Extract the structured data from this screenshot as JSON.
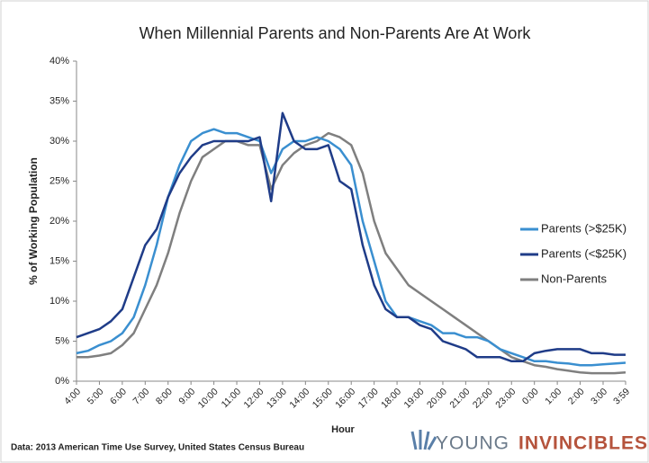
{
  "chart_data": {
    "type": "line",
    "title": "When Millennial Parents and Non-Parents Are At Work",
    "x_label": "Hour",
    "y_label": "% of Working Population",
    "source": "Data: 2013 American Time Use Survey, United States Census Bureau",
    "logo": [
      "YOUNG",
      "INVINCIBLES"
    ],
    "x": [
      0,
      0.5,
      1,
      1.5,
      2,
      2.5,
      3,
      3.5,
      4,
      4.5,
      5,
      5.5,
      6,
      6.5,
      7,
      7.5,
      8,
      8.5,
      9,
      9.5,
      10,
      10.5,
      11,
      11.5,
      12,
      12.5,
      13,
      13.5,
      14,
      14.5,
      15,
      15.5,
      16,
      16.5,
      17,
      17.5,
      18,
      18.5,
      19,
      19.5,
      20,
      20.5,
      21,
      21.5,
      22,
      22.5,
      23,
      23.5,
      23.983
    ],
    "series": [
      {
        "name": "Parents (>$25K)",
        "color": "#3a8fd0",
        "values": [
          3.5,
          3.8,
          4.5,
          5,
          6,
          8,
          12,
          17,
          23,
          27,
          30,
          31,
          31.5,
          31,
          31,
          30.5,
          30,
          26,
          29,
          30,
          30,
          30.5,
          30,
          29,
          27,
          20,
          15,
          10,
          8,
          8,
          7.5,
          7,
          6,
          6,
          5.5,
          5.5,
          5,
          4,
          3.5,
          3,
          2.5,
          2.5,
          2.3,
          2.2,
          2,
          2,
          2.1,
          2.2,
          2.3
        ]
      },
      {
        "name": "Parents (<$25K)",
        "color": "#1f3c88",
        "values": [
          5.5,
          6,
          6.5,
          7.5,
          9,
          13,
          17,
          19,
          23,
          26,
          28,
          29.5,
          30,
          30,
          30,
          30,
          30.5,
          22.5,
          33.5,
          30,
          29,
          29,
          29.5,
          25,
          24,
          17,
          12,
          9,
          8,
          8,
          7,
          6.5,
          5,
          4.5,
          4,
          3,
          3,
          3,
          2.5,
          2.5,
          3.5,
          3.8,
          4,
          4,
          4,
          3.5,
          3.5,
          3.3,
          3.3
        ]
      },
      {
        "name": "Non-Parents",
        "color": "#7f7f7f",
        "values": [
          3,
          3,
          3.2,
          3.5,
          4.5,
          6,
          9,
          12,
          16,
          21,
          25,
          28,
          29,
          30,
          30,
          29.5,
          29.5,
          24,
          27,
          28.5,
          29.5,
          30,
          31,
          30.5,
          29.5,
          26,
          20,
          16,
          14,
          12,
          11,
          10,
          9,
          8,
          7,
          6,
          5,
          4,
          3,
          2.5,
          2,
          1.8,
          1.5,
          1.3,
          1.1,
          1,
          1,
          1,
          1.1
        ]
      }
    ],
    "xlim": [
      0,
      23.983
    ],
    "xticks": [
      {
        "value": 0,
        "label": "4:00"
      },
      {
        "value": 1,
        "label": "5:00"
      },
      {
        "value": 2,
        "label": "6:00"
      },
      {
        "value": 3,
        "label": "7:00"
      },
      {
        "value": 4,
        "label": "8:00"
      },
      {
        "value": 5,
        "label": "9:00"
      },
      {
        "value": 6,
        "label": "10:00"
      },
      {
        "value": 7,
        "label": "11:00"
      },
      {
        "value": 8,
        "label": "12:00"
      },
      {
        "value": 9,
        "label": "13:00"
      },
      {
        "value": 10,
        "label": "14:00"
      },
      {
        "value": 11,
        "label": "15:00"
      },
      {
        "value": 12,
        "label": "16:00"
      },
      {
        "value": 13,
        "label": "17:00"
      },
      {
        "value": 14,
        "label": "18:00"
      },
      {
        "value": 15,
        "label": "19:00"
      },
      {
        "value": 16,
        "label": "20:00"
      },
      {
        "value": 17,
        "label": "21:00"
      },
      {
        "value": 18,
        "label": "22:00"
      },
      {
        "value": 19,
        "label": "23:00"
      },
      {
        "value": 20,
        "label": "0:00"
      },
      {
        "value": 21,
        "label": "1:00"
      },
      {
        "value": 22,
        "label": "2:00"
      },
      {
        "value": 23,
        "label": "3:00"
      },
      {
        "value": 23.983,
        "label": "3:59"
      }
    ],
    "ylim": [
      0,
      40
    ],
    "yticks": [
      {
        "value": 0,
        "label": "0%"
      },
      {
        "value": 5,
        "label": "5%"
      },
      {
        "value": 10,
        "label": "10%"
      },
      {
        "value": 15,
        "label": "15%"
      },
      {
        "value": 20,
        "label": "20%"
      },
      {
        "value": 25,
        "label": "25%"
      },
      {
        "value": 30,
        "label": "30%"
      },
      {
        "value": 35,
        "label": "35%"
      },
      {
        "value": 40,
        "label": "40%"
      }
    ],
    "legend": "right"
  }
}
